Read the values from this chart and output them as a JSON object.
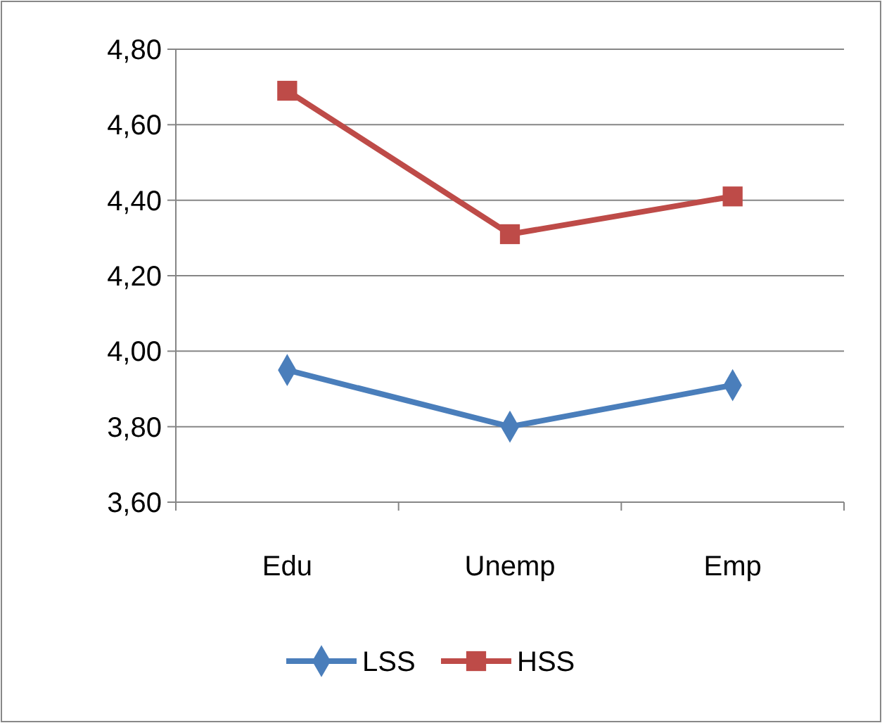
{
  "chart_data": {
    "type": "line",
    "categories": [
      "Edu",
      "Unemp",
      "Emp"
    ],
    "series": [
      {
        "name": "LSS",
        "color": "#4a7ebb",
        "values": [
          3.95,
          3.8,
          3.91
        ],
        "marker": "diamond"
      },
      {
        "name": "HSS",
        "color": "#be4b48",
        "values": [
          4.69,
          4.31,
          4.41
        ],
        "marker": "square"
      }
    ],
    "ylim": [
      3.6,
      4.8
    ],
    "yticks": [
      {
        "value": 3.6,
        "label": "3,60"
      },
      {
        "value": 3.8,
        "label": "3,80"
      },
      {
        "value": 4.0,
        "label": "4,00"
      },
      {
        "value": 4.2,
        "label": "4,20"
      },
      {
        "value": 4.4,
        "label": "4,40"
      },
      {
        "value": 4.6,
        "label": "4,60"
      },
      {
        "value": 4.8,
        "label": "4,80"
      }
    ],
    "grid": "y",
    "legend": "bottom",
    "line_style": "solid"
  }
}
